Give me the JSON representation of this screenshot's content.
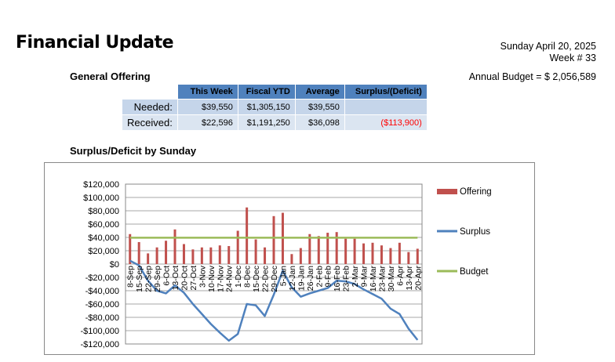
{
  "header": {
    "title": "Financial Update",
    "date": "Sunday April 20, 2025",
    "week": "Week # 33",
    "annual_budget": "Annual Budget = $ 2,056,589"
  },
  "general_offering": {
    "heading": "General Offering",
    "columns": [
      "This Week",
      "Fiscal YTD",
      "Average",
      "Surplus/(Deficit)"
    ],
    "rows": [
      {
        "label": "Needed:",
        "values": [
          "$39,550",
          "$1,305,150",
          "$39,550",
          ""
        ]
      },
      {
        "label": "Received:",
        "values": [
          "$22,596",
          "$1,191,250",
          "$36,098",
          "($113,900)"
        ]
      }
    ],
    "deficit_color": "#ff0000"
  },
  "chart_data": {
    "type": "bar",
    "title": "Surplus/Deficit by Sunday",
    "categories": [
      "8-Sep",
      "15-Sep",
      "22-Sep",
      "29-Sep",
      "6-Oct",
      "13-Oct",
      "20-Oct",
      "27-Oct",
      "3-Nov",
      "10-Nov",
      "17-Nov",
      "24-Nov",
      "1-Dec",
      "8-Dec",
      "15-Dec",
      "22-Dec",
      "29-Dec",
      "5-Jan",
      "12-Jan",
      "19-Jan",
      "26-Jan",
      "2-Feb",
      "9-Feb",
      "16-Feb",
      "23-Feb",
      "2-Mar",
      "9-Mar",
      "16-Mar",
      "23-Mar",
      "30-Mar",
      "6-Apr",
      "13-Apr",
      "20-Apr"
    ],
    "y_ticks": [
      "$120,000",
      "$100,000",
      "$80,000",
      "$60,000",
      "$40,000",
      "$20,000",
      "$0",
      "-$20,000",
      "-$40,000",
      "-$60,000",
      "-$80,000",
      "-$100,000",
      "-$120,000"
    ],
    "ylim": [
      -120000,
      120000
    ],
    "series": [
      {
        "name": "Offering",
        "kind": "bar",
        "color": "#c0504d",
        "values": [
          45000,
          33000,
          16000,
          25000,
          35000,
          52000,
          30000,
          22000,
          25000,
          25000,
          28000,
          27000,
          50000,
          85000,
          37000,
          25000,
          72000,
          77000,
          15000,
          24000,
          45000,
          42000,
          47000,
          48000,
          38000,
          38000,
          31000,
          32000,
          28000,
          24000,
          32000,
          18000,
          23000
        ]
      },
      {
        "name": "Surplus",
        "kind": "line",
        "color": "#4f81bd",
        "values": [
          5000,
          -2000,
          -25000,
          -40000,
          -44000,
          -32000,
          -43000,
          -60000,
          -75000,
          -90000,
          -103000,
          -115000,
          -105000,
          -60000,
          -62000,
          -78000,
          -46000,
          -10000,
          -35000,
          -49000,
          -44000,
          -40000,
          -36000,
          -25000,
          -26000,
          -30000,
          -38000,
          -45000,
          -52000,
          -67000,
          -75000,
          -97000,
          -114000
        ]
      },
      {
        "name": "Budget",
        "kind": "line",
        "color": "#9bbb59",
        "values": [
          39550,
          39550,
          39550,
          39550,
          39550,
          39550,
          39550,
          39550,
          39550,
          39550,
          39550,
          39550,
          39550,
          39550,
          39550,
          39550,
          39550,
          39550,
          39550,
          39550,
          39550,
          39550,
          39550,
          39550,
          39550,
          39550,
          39550,
          39550,
          39550,
          39550,
          39550,
          39550,
          39550
        ]
      }
    ],
    "grid": true,
    "legend_position": "right"
  }
}
